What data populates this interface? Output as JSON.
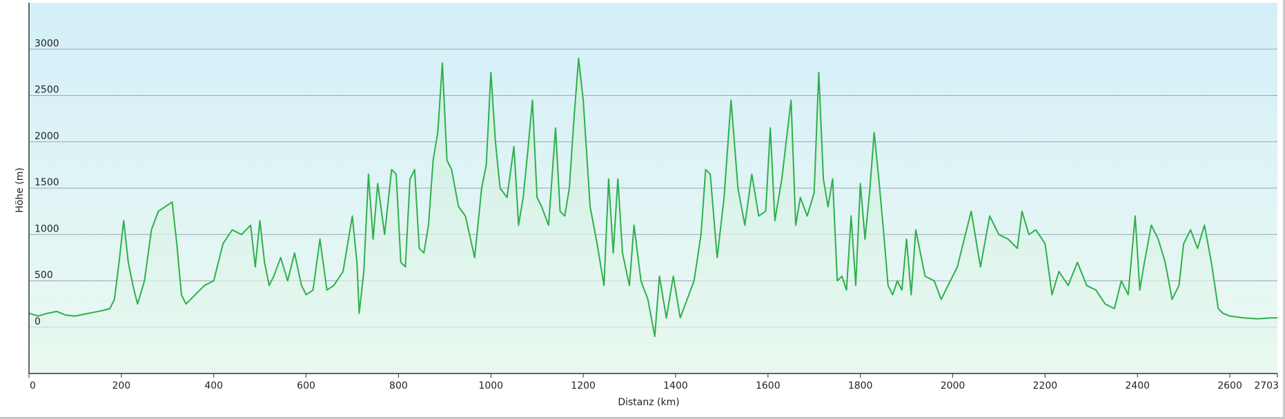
{
  "chart_data": {
    "type": "area",
    "title": "",
    "xlabel": "Distanz  (km)",
    "ylabel": "Höhe (m)",
    "xlim": [
      0,
      2703
    ],
    "ylim": [
      -500,
      3500
    ],
    "x_ticks": [
      0,
      200,
      400,
      600,
      800,
      1000,
      1200,
      1400,
      1600,
      1800,
      2000,
      2200,
      2400,
      2600,
      2703
    ],
    "y_ticks": [
      0,
      500,
      1000,
      1500,
      2000,
      2500,
      3000
    ],
    "grid": "horizontal",
    "line_color": "#2db04a",
    "background_gradient": [
      "#d4eff9",
      "#ebf9f2"
    ],
    "series": [
      {
        "x": [
          0,
          20,
          40,
          60,
          80,
          100,
          120,
          140,
          160,
          175,
          185,
          195,
          205,
          215,
          225,
          235,
          250,
          265,
          280,
          295,
          310,
          320,
          330,
          340,
          350,
          360,
          380,
          400,
          420,
          440,
          460,
          480,
          490,
          500,
          510,
          520,
          530,
          545,
          560,
          575,
          590,
          600,
          615,
          630,
          645,
          660,
          680,
          700,
          710,
          715,
          725,
          735,
          745,
          755,
          770,
          785,
          795,
          805,
          815,
          825,
          835,
          845,
          855,
          865,
          875,
          885,
          895,
          905,
          915,
          930,
          945,
          965,
          980,
          990,
          1000,
          1010,
          1020,
          1035,
          1050,
          1060,
          1070,
          1080,
          1090,
          1100,
          1110,
          1125,
          1140,
          1150,
          1160,
          1170,
          1180,
          1190,
          1200,
          1215,
          1230,
          1245,
          1255,
          1265,
          1275,
          1285,
          1300,
          1310,
          1325,
          1340,
          1355,
          1365,
          1380,
          1395,
          1410,
          1425,
          1440,
          1455,
          1465,
          1475,
          1490,
          1505,
          1520,
          1535,
          1550,
          1565,
          1580,
          1595,
          1605,
          1615,
          1630,
          1650,
          1660,
          1670,
          1685,
          1700,
          1710,
          1720,
          1730,
          1740,
          1750,
          1760,
          1770,
          1780,
          1790,
          1800,
          1810,
          1820,
          1830,
          1840,
          1850,
          1860,
          1870,
          1880,
          1890,
          1900,
          1910,
          1920,
          1940,
          1960,
          1975,
          1990,
          2010,
          2025,
          2040,
          2060,
          2080,
          2100,
          2120,
          2140,
          2150,
          2165,
          2180,
          2200,
          2215,
          2230,
          2250,
          2270,
          2290,
          2310,
          2330,
          2350,
          2365,
          2380,
          2395,
          2405,
          2415,
          2430,
          2445,
          2460,
          2475,
          2490,
          2500,
          2515,
          2530,
          2545,
          2560,
          2575,
          2585,
          2600,
          2630,
          2660,
          2690,
          2703
        ],
        "y": [
          150,
          120,
          150,
          170,
          130,
          120,
          140,
          160,
          180,
          200,
          300,
          700,
          1150,
          700,
          450,
          250,
          500,
          1050,
          1250,
          1300,
          1350,
          900,
          350,
          250,
          300,
          350,
          450,
          500,
          900,
          1050,
          1000,
          1100,
          650,
          1150,
          700,
          450,
          550,
          750,
          500,
          800,
          450,
          350,
          400,
          950,
          400,
          450,
          600,
          1200,
          700,
          150,
          600,
          1650,
          950,
          1550,
          1000,
          1700,
          1650,
          700,
          650,
          1600,
          1700,
          850,
          800,
          1100,
          1800,
          2100,
          2850,
          1800,
          1700,
          1300,
          1200,
          750,
          1500,
          1750,
          2750,
          2000,
          1500,
          1400,
          1950,
          1100,
          1400,
          1900,
          2450,
          1400,
          1300,
          1100,
          2150,
          1250,
          1200,
          1500,
          2250,
          2900,
          2450,
          1300,
          900,
          450,
          1600,
          800,
          1600,
          800,
          450,
          1100,
          500,
          300,
          -100,
          550,
          100,
          550,
          100,
          300,
          500,
          1000,
          1700,
          1650,
          750,
          1400,
          2450,
          1500,
          1100,
          1650,
          1200,
          1250,
          2150,
          1150,
          1600,
          2450,
          1100,
          1400,
          1200,
          1450,
          2750,
          1600,
          1300,
          1600,
          500,
          550,
          400,
          1200,
          450,
          1550,
          950,
          1450,
          2100,
          1600,
          1050,
          450,
          350,
          500,
          400,
          950,
          350,
          1050,
          550,
          500,
          300,
          450,
          650,
          950,
          1250,
          650,
          1200,
          1000,
          950,
          850,
          1250,
          1000,
          1050,
          900,
          350,
          600,
          450,
          700,
          450,
          400,
          250,
          200,
          500,
          350,
          1200,
          400,
          700,
          1100,
          950,
          700,
          300,
          450,
          900,
          1050,
          850,
          1100,
          700,
          200,
          150,
          120,
          100,
          90,
          100,
          100
        ]
      }
    ]
  }
}
